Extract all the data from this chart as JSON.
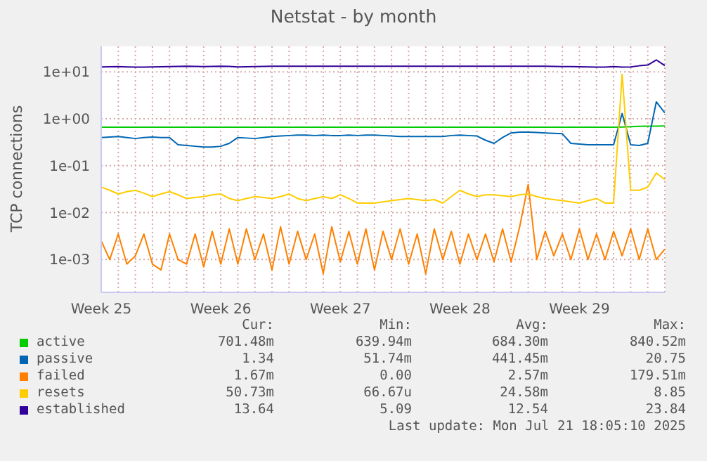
{
  "chart_data": {
    "type": "line",
    "title": "Netstat - by month",
    "ylabel": "TCP connections",
    "log": "y",
    "grid": true,
    "legend": "bottom",
    "marker": "none",
    "line_style": "solid",
    "categories": [
      "Week 25",
      null,
      null,
      null,
      null,
      null,
      null,
      null,
      null,
      null,
      null,
      null,
      null,
      null,
      "Week 26",
      null,
      null,
      null,
      null,
      null,
      null,
      null,
      null,
      null,
      null,
      null,
      null,
      null,
      "Week 27",
      null,
      null,
      null,
      null,
      null,
      null,
      null,
      null,
      null,
      null,
      null,
      null,
      null,
      "Week 28",
      null,
      null,
      null,
      null,
      null,
      null,
      null,
      null,
      null,
      null,
      null,
      null,
      null,
      "Week 29",
      null,
      null,
      null,
      null,
      null,
      null,
      null,
      null,
      null,
      null
    ],
    "ylim": [
      0.0002,
      35
    ],
    "yticks": [
      {
        "value": 0.001,
        "label": "1e-03"
      },
      {
        "value": 0.01,
        "label": "1e-02"
      },
      {
        "value": 0.1,
        "label": "1e-01"
      },
      {
        "value": 1,
        "label": "1e+00"
      },
      {
        "value": 10,
        "label": "1e+01"
      }
    ],
    "series": [
      {
        "name": "active",
        "color": "#00cc00",
        "values": [
          0.66,
          0.66,
          0.66,
          0.66,
          0.66,
          0.66,
          0.66,
          0.66,
          0.66,
          0.66,
          0.66,
          0.66,
          0.66,
          0.66,
          0.66,
          0.66,
          0.66,
          0.66,
          0.66,
          0.66,
          0.66,
          0.66,
          0.66,
          0.66,
          0.66,
          0.66,
          0.66,
          0.66,
          0.66,
          0.66,
          0.66,
          0.66,
          0.66,
          0.66,
          0.66,
          0.66,
          0.66,
          0.66,
          0.66,
          0.66,
          0.66,
          0.66,
          0.66,
          0.66,
          0.66,
          0.66,
          0.66,
          0.66,
          0.66,
          0.66,
          0.66,
          0.66,
          0.66,
          0.66,
          0.66,
          0.66,
          0.66,
          0.66,
          0.66,
          0.66,
          0.66,
          0.67,
          0.68,
          0.69,
          0.7,
          0.7,
          0.70148
        ]
      },
      {
        "name": "passive",
        "color": "#0066b3",
        "values": [
          0.4,
          0.41,
          0.42,
          0.4,
          0.38,
          0.4,
          0.41,
          0.4,
          0.4,
          0.28,
          0.27,
          0.26,
          0.25,
          0.25,
          0.26,
          0.3,
          0.4,
          0.39,
          0.38,
          0.4,
          0.42,
          0.43,
          0.44,
          0.45,
          0.45,
          0.44,
          0.45,
          0.44,
          0.44,
          0.45,
          0.44,
          0.45,
          0.45,
          0.44,
          0.43,
          0.42,
          0.42,
          0.42,
          0.42,
          0.42,
          0.42,
          0.44,
          0.45,
          0.44,
          0.43,
          0.35,
          0.3,
          0.4,
          0.5,
          0.52,
          0.52,
          0.51,
          0.5,
          0.49,
          0.48,
          0.3,
          0.29,
          0.28,
          0.28,
          0.28,
          0.28,
          1.3,
          0.28,
          0.27,
          0.3,
          2.3,
          1.34
        ]
      },
      {
        "name": "failed",
        "color": "#ff8000",
        "values": [
          0.0025,
          0.001,
          0.0035,
          0.0008,
          0.0012,
          0.0035,
          0.0008,
          0.0006,
          0.0035,
          0.001,
          0.0008,
          0.0035,
          0.0007,
          0.004,
          0.0008,
          0.0045,
          0.0008,
          0.0045,
          0.001,
          0.0035,
          0.0006,
          0.005,
          0.0008,
          0.004,
          0.001,
          0.0035,
          0.0005,
          0.005,
          0.0009,
          0.004,
          0.0008,
          0.0045,
          0.0006,
          0.004,
          0.001,
          0.0045,
          0.0008,
          0.0035,
          0.0005,
          0.0045,
          0.001,
          0.004,
          0.0008,
          0.0035,
          0.001,
          0.0035,
          0.0009,
          0.0045,
          0.0009,
          0.005,
          0.04,
          0.001,
          0.004,
          0.0012,
          0.0035,
          0.001,
          0.0045,
          0.001,
          0.0035,
          0.001,
          0.004,
          0.0012,
          0.0045,
          0.001,
          0.0045,
          0.001,
          0.00167
        ]
      },
      {
        "name": "resets",
        "color": "#ffcc00",
        "values": [
          0.035,
          0.03,
          0.025,
          0.028,
          0.03,
          0.026,
          0.022,
          0.025,
          0.028,
          0.024,
          0.02,
          0.021,
          0.022,
          0.024,
          0.025,
          0.02,
          0.018,
          0.02,
          0.022,
          0.021,
          0.02,
          0.022,
          0.025,
          0.02,
          0.018,
          0.02,
          0.022,
          0.02,
          0.024,
          0.02,
          0.016,
          0.016,
          0.016,
          0.017,
          0.018,
          0.019,
          0.02,
          0.019,
          0.018,
          0.019,
          0.016,
          0.022,
          0.03,
          0.025,
          0.022,
          0.024,
          0.024,
          0.023,
          0.022,
          0.024,
          0.025,
          0.022,
          0.02,
          0.019,
          0.018,
          0.017,
          0.016,
          0.018,
          0.02,
          0.016,
          0.016,
          8.85,
          0.03,
          0.03,
          0.035,
          0.07,
          0.05073
        ]
      },
      {
        "name": "established",
        "color": "#330099",
        "values": [
          12.8,
          12.9,
          13,
          12.8,
          12.6,
          12.7,
          12.8,
          12.9,
          13,
          13.1,
          13.2,
          13.1,
          13,
          13.1,
          13.2,
          13.1,
          12.8,
          12.9,
          13,
          13.1,
          13.2,
          13.2,
          13.2,
          13.2,
          13.2,
          13.2,
          13.2,
          13.2,
          13.2,
          13.2,
          13.2,
          13.2,
          13.2,
          13.2,
          13.2,
          13.2,
          13.2,
          13.2,
          13.2,
          13.2,
          13.2,
          13.2,
          13.2,
          13.2,
          13.2,
          13.2,
          13.2,
          13.2,
          13.2,
          13.2,
          13.2,
          13.2,
          13.2,
          13.1,
          13,
          13,
          12.9,
          12.8,
          12.7,
          12.6,
          13,
          12.6,
          12.8,
          13.5,
          14,
          18,
          13.64
        ]
      }
    ],
    "annotations": [
      "Cur:",
      "Min:",
      "Avg:",
      "Max:",
      "701.48m",
      "639.94m",
      "684.30m",
      "840.52m",
      "1.34",
      "51.74m",
      "441.45m",
      "20.75",
      "1.67m",
      "0.00",
      "2.57m",
      "179.51m",
      "50.73m",
      "66.67u",
      "24.58m",
      "8.85",
      "13.64",
      "5.09",
      "12.54",
      "23.84",
      "Last update: Mon Jul 21 18:05:10 2025"
    ]
  }
}
